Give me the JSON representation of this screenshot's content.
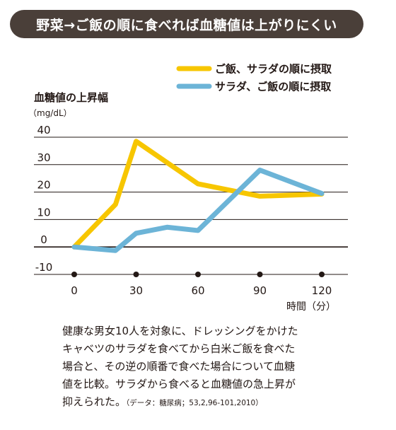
{
  "header": {
    "title": "野菜→ご飯の順に食べれば血糖値は上がりにくい"
  },
  "chart_data": {
    "type": "line",
    "title": "野菜→ご飯の順に食べれば血糖値は上がりにくい",
    "ylabel": "血糖値の上昇幅",
    "yunit": "（mg/dL）",
    "xlabel": "時間（分）",
    "ylim": [
      -10,
      40
    ],
    "yticks": [
      40,
      30,
      20,
      10,
      0,
      -10
    ],
    "xticks": [
      0,
      30,
      60,
      90,
      120
    ],
    "xlim": [
      0,
      120
    ],
    "grid": true,
    "legend_position": "top-right",
    "series": [
      {
        "name": "ご飯、サラダの順に摂取",
        "color": "#f7c600",
        "x": [
          0,
          20,
          30,
          60,
          90,
          120
        ],
        "y": [
          0,
          15.5,
          38.5,
          23,
          18.5,
          19.3
        ]
      },
      {
        "name": "サラダ、ご飯の順に摂取",
        "color": "#6cb4d7",
        "x": [
          0,
          20,
          30,
          45,
          60,
          90,
          120
        ],
        "y": [
          0,
          -1.3,
          5,
          7.2,
          6,
          28,
          19.5
        ]
      }
    ]
  },
  "caption": {
    "line1": "健康な男女10人を対象に、ドレッシングをかけた",
    "line2": "キャベツのサラダを食べてから白米ご飯を食べた",
    "line3": "場合と、その逆の順番で食べた場合について血糖",
    "line4": "値を比較。サラダから食べると血糖値の急上昇が",
    "line5": "抑えられた。",
    "source": "（データ：糖尿病；53,2,96-101,2010）"
  }
}
